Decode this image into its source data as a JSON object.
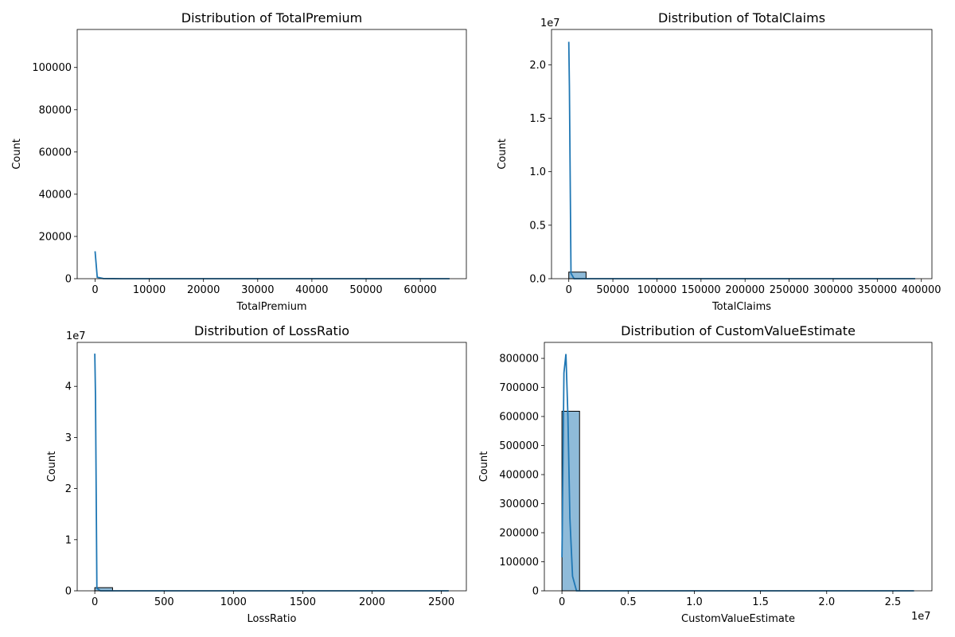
{
  "chart_data": [
    {
      "type": "bar",
      "title": "Distribution of TotalPremium",
      "xlabel": "TotalPremium",
      "ylabel": "Count",
      "xlim": [
        -3300,
        68500
      ],
      "ylim": [
        0,
        118000
      ],
      "xticks": [
        0,
        10000,
        20000,
        30000,
        40000,
        50000,
        60000
      ],
      "yticks": [
        0,
        20000,
        40000,
        60000,
        80000,
        100000
      ],
      "offset_text": "",
      "bars": [],
      "kde": [
        [
          0,
          13000
        ],
        [
          400,
          700
        ],
        [
          1500,
          80
        ],
        [
          5000,
          0
        ],
        [
          65400,
          0
        ]
      ],
      "line_color": "#1f77b4",
      "bar_color": "#1f77b4"
    },
    {
      "type": "bar",
      "title": "Distribution of TotalClaims",
      "xlabel": "TotalClaims",
      "ylabel": "Count",
      "xlim": [
        -19600,
        412000
      ],
      "ylim": [
        0,
        23300000
      ],
      "xticks": [
        0,
        50000,
        100000,
        150000,
        200000,
        250000,
        300000,
        350000,
        400000
      ],
      "yticks": [
        0,
        5000000,
        10000000,
        15000000,
        20000000
      ],
      "ytick_labels": [
        "0.0",
        "0.5",
        "1.0",
        "1.5",
        "2.0"
      ],
      "offset_text": "1e7",
      "bars": [
        {
          "x0": 0,
          "x1": 19600,
          "count": 618000
        }
      ],
      "kde": [
        [
          0,
          22150000
        ],
        [
          700,
          18000000
        ],
        [
          2500,
          500000
        ],
        [
          6000,
          0
        ],
        [
          393000,
          0
        ]
      ],
      "line_color": "#1f77b4",
      "bar_color": "#1f77b4"
    },
    {
      "type": "bar",
      "title": "Distribution of LossRatio",
      "xlabel": "LossRatio",
      "ylabel": "Count",
      "xlim": [
        -127,
        2680
      ],
      "ylim": [
        0,
        48600000
      ],
      "xticks": [
        0,
        500,
        1000,
        1500,
        2000,
        2500
      ],
      "yticks": [
        0,
        10000000,
        20000000,
        30000000,
        40000000
      ],
      "ytick_labels": [
        "0",
        "1",
        "2",
        "3",
        "4"
      ],
      "offset_text": "1e7",
      "bars": [
        {
          "x0": 0,
          "x1": 128,
          "count": 618000
        }
      ],
      "kde": [
        [
          0,
          46400000
        ],
        [
          5,
          38000000
        ],
        [
          15,
          500000
        ],
        [
          40,
          0
        ],
        [
          2553,
          0
        ]
      ],
      "line_color": "#1f77b4",
      "bar_color": "#1f77b4"
    },
    {
      "type": "bar",
      "title": "Distribution of CustomValueEstimate",
      "xlabel": "CustomValueEstimate",
      "ylabel": "Count",
      "xlim": [
        -1330000,
        27950000
      ],
      "ylim": [
        0,
        855000
      ],
      "xticks": [
        0,
        5000000,
        10000000,
        15000000,
        20000000,
        25000000
      ],
      "xtick_labels": [
        "0",
        "0.5",
        "1.0",
        "1.5",
        "2.0",
        "2.5"
      ],
      "yticks": [
        0,
        100000,
        200000,
        300000,
        400000,
        500000,
        600000,
        700000,
        800000
      ],
      "x_offset_text": "1e7",
      "bars": [
        {
          "x0": 0,
          "x1": 1330000,
          "count": 618000
        }
      ],
      "kde": [
        [
          0,
          115000
        ],
        [
          150000,
          750000
        ],
        [
          300000,
          815000
        ],
        [
          450000,
          600000
        ],
        [
          600000,
          250000
        ],
        [
          800000,
          50000
        ],
        [
          1100000,
          0
        ],
        [
          26600000,
          0
        ]
      ],
      "line_color": "#1f77b4",
      "bar_color": "#1f77b4"
    }
  ]
}
